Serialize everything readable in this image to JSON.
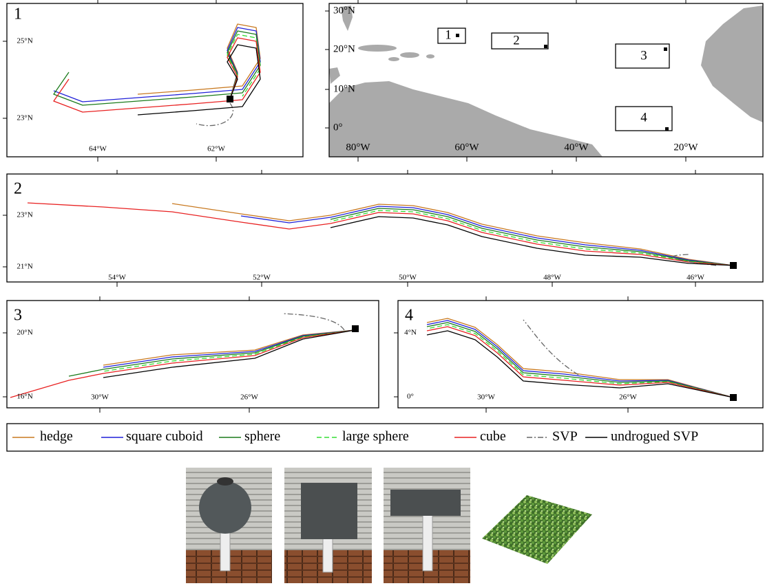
{
  "panels": [
    {
      "label": "1",
      "yticks": [
        "25°N",
        "23°N"
      ],
      "xticks": [
        "64°W",
        "62°W"
      ]
    },
    {
      "yticks": [
        "30°N",
        "20°N",
        "10°N",
        "0°"
      ],
      "xticks": [
        "80°W",
        "60°W",
        "40°W",
        "20°W"
      ],
      "boxes": [
        "1",
        "2",
        "3",
        "4"
      ]
    },
    {
      "label": "2",
      "yticks": [
        "23°N",
        "21°N"
      ],
      "xticks": [
        "54°W",
        "52°W",
        "50°W",
        "48°W",
        "46°W"
      ]
    },
    {
      "label": "3",
      "yticks": [
        "20°N",
        "16°N"
      ],
      "xticks": [
        "30°W",
        "26°W"
      ]
    },
    {
      "label": "4",
      "yticks": [
        "4°N",
        "0°"
      ],
      "xticks": [
        "30°W",
        "26°W"
      ]
    }
  ],
  "legend": [
    {
      "name": "hedge",
      "color": "#c8781e",
      "line_style": "solid"
    },
    {
      "name": "square cuboid",
      "color": "#1f1fd8",
      "line_style": "solid"
    },
    {
      "name": "sphere",
      "color": "#1a7a1a",
      "line_style": "solid"
    },
    {
      "name": "large sphere",
      "color": "#33dd33",
      "line_style": "dashed"
    },
    {
      "name": "cube",
      "color": "#e82020",
      "line_style": "solid"
    },
    {
      "name": "SVP",
      "color": "#666666",
      "line_style": "dash-dot"
    },
    {
      "name": "undrogued SVP",
      "color": "#000000",
      "line_style": "solid"
    }
  ]
}
